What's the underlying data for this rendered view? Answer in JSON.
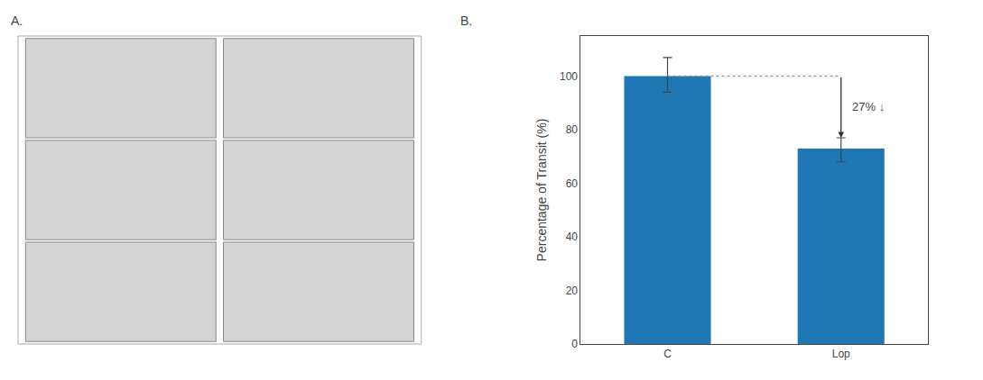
{
  "chart_data": {
    "type": "bar",
    "categories": [
      "C",
      "Lop"
    ],
    "values": [
      100,
      73
    ],
    "error_plus": [
      7,
      4
    ],
    "error_minus": [
      6,
      5
    ],
    "ylabel": "Percentage of Transit (%)",
    "ylim": [
      0,
      115
    ],
    "yticks": [
      0,
      20,
      40,
      60,
      80,
      100
    ],
    "reference_line": 100,
    "annotations": [
      "27% ↓"
    ],
    "panel_labels": [
      "A.",
      "B."
    ],
    "grid": false
  }
}
